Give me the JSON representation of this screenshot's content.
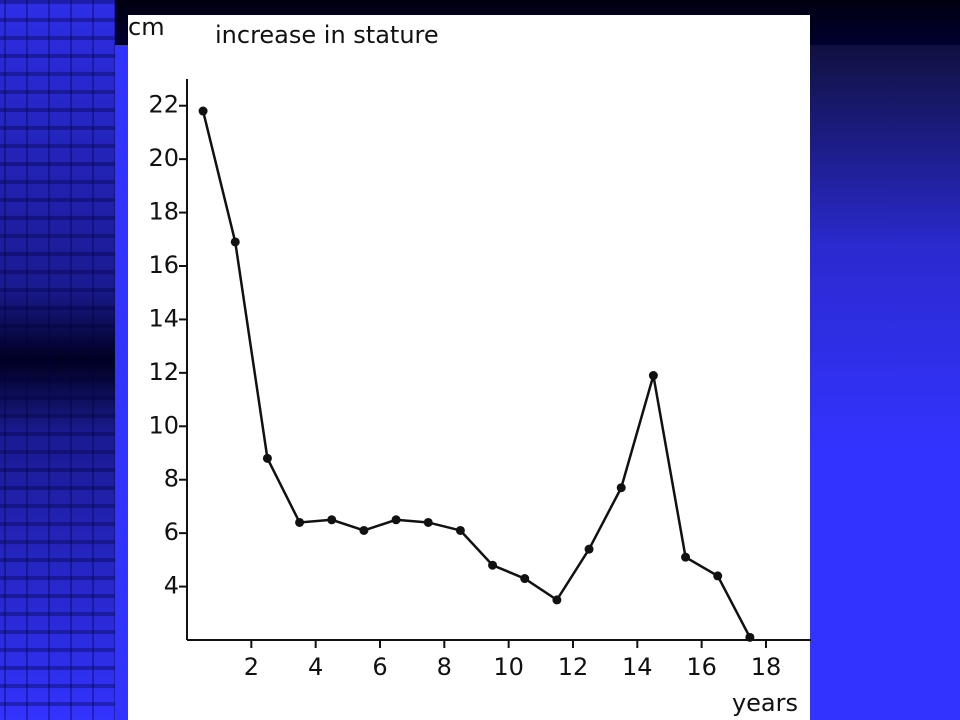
{
  "chart_data": {
    "type": "line",
    "title": "increase in stature",
    "y_label": "cm",
    "x_label": "years",
    "x": [
      0.5,
      1.5,
      2.5,
      3.5,
      4.5,
      5.5,
      6.5,
      7.5,
      8.5,
      9.5,
      10.5,
      11.5,
      12.5,
      13.5,
      14.5,
      15.5,
      16.5,
      17.5
    ],
    "series": [
      {
        "name": "increase in stature",
        "color": "#111111",
        "values": [
          21.8,
          16.9,
          8.8,
          6.4,
          6.5,
          6.1,
          6.5,
          6.4,
          6.1,
          4.8,
          4.3,
          3.5,
          5.4,
          7.7,
          11.9,
          5.1,
          4.4,
          2.1
        ]
      }
    ],
    "xlim": [
      0,
      19.4
    ],
    "xticks": [
      2,
      4,
      6,
      8,
      10,
      12,
      14,
      16,
      18
    ],
    "ylim": [
      2,
      23
    ],
    "yticks": [
      4,
      6,
      8,
      10,
      12,
      14,
      16,
      18,
      20,
      22
    ]
  }
}
